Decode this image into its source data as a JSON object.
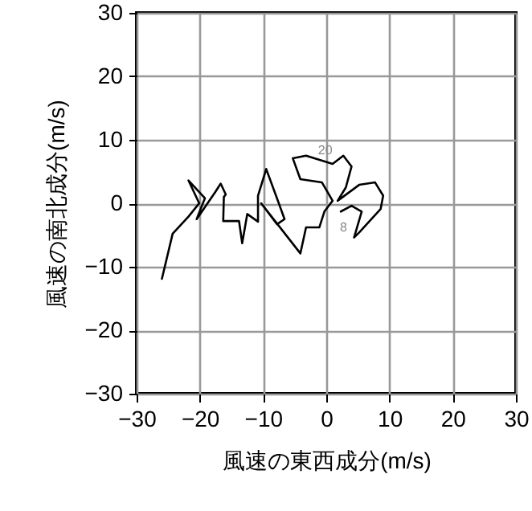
{
  "chart_data": {
    "type": "line",
    "xlabel": "風速の東西成分(m/s)",
    "ylabel": "風速の南北成分(m/s)",
    "x": [
      -26,
      -24.3,
      -21.8,
      -20.1,
      -21.8,
      -19.2,
      -20.5,
      -17.6,
      -16.7,
      -15.9,
      -16.2,
      -16.3,
      -13.8,
      -13.3,
      -12.5,
      -10.8,
      -10.8,
      -9.5,
      -7.8,
      -6.6,
      -7.8,
      -10.3,
      -4.1,
      -3.2,
      -1.1,
      -0.3,
      1.0,
      -0.7,
      -4.1,
      -5.3,
      -3.2,
      1.0,
      2.7,
      4.0,
      3.1,
      1.8,
      5.2,
      7.7,
      9.0,
      8.6,
      5.2,
      4.4,
      5.6,
      4.0,
      2.3
    ],
    "series": [
      {
        "color": "#000000",
        "values": [
          -11.9,
          -4.8,
          -2.1,
          0,
          3.6,
          0.8,
          -2.5,
          1.7,
          3.1,
          1.4,
          1.0,
          -2.8,
          -2.8,
          -6.3,
          -1.7,
          -2.9,
          1.2,
          5.4,
          0.8,
          -2.5,
          -3.3,
          0.0,
          -7.9,
          -3.8,
          -3.8,
          -1.3,
          0.4,
          3.3,
          3.8,
          7.1,
          7.5,
          6.2,
          7.5,
          5.8,
          2.5,
          0.4,
          2.9,
          3.3,
          1.2,
          -0.9,
          -4.6,
          -5.4,
          -1.3,
          -0.4,
          -1.3
        ]
      }
    ],
    "annotations": [
      {
        "text": "20",
        "x": 0.6,
        "y": 6.9
      },
      {
        "text": "8",
        "x": 3.5,
        "y": -5.2
      }
    ],
    "xlim": [
      -30,
      30
    ],
    "ylim": [
      -30,
      30
    ],
    "xticks": [
      {
        "value": -30,
        "label": "−30"
      },
      {
        "value": -20,
        "label": "−20"
      },
      {
        "value": -10,
        "label": "−10"
      },
      0,
      10,
      20,
      30
    ],
    "yticks": [
      {
        "value": -30,
        "label": "−30"
      },
      {
        "value": -20,
        "label": "−20"
      },
      {
        "value": -10,
        "label": "−10"
      },
      0,
      10,
      20,
      30
    ],
    "grid": true,
    "marker": "none",
    "line_style": "solid"
  }
}
